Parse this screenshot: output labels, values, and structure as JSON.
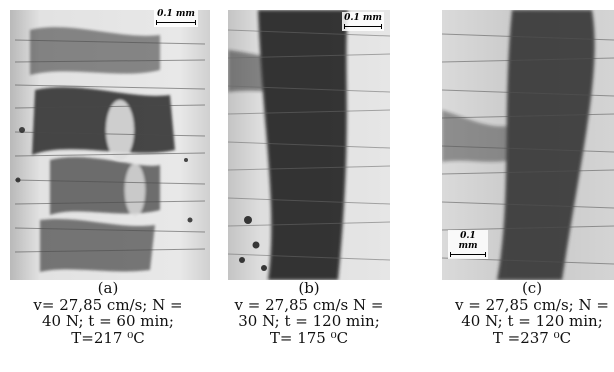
{
  "figure": {
    "panels": [
      {
        "id": "a",
        "scale_label": "0.1 mm",
        "caption_lines": [
          "(a)",
          "v= 27,85 cm/s; N =",
          "40 N; t = 60 min;",
          "T=217 ⁰C"
        ]
      },
      {
        "id": "b",
        "scale_label": "0.1 mm",
        "caption_lines": [
          "(b)",
          "v = 27,85 cm/s N =",
          "30 N; t = 120 min;",
          "T= 175 ⁰C"
        ]
      },
      {
        "id": "c",
        "scale_label": "0.1 mm",
        "caption_lines": [
          "(c)",
          "v = 27,85 cm/s; N =",
          "40 N; t = 120 min;",
          "T =237 ⁰C"
        ]
      }
    ]
  }
}
